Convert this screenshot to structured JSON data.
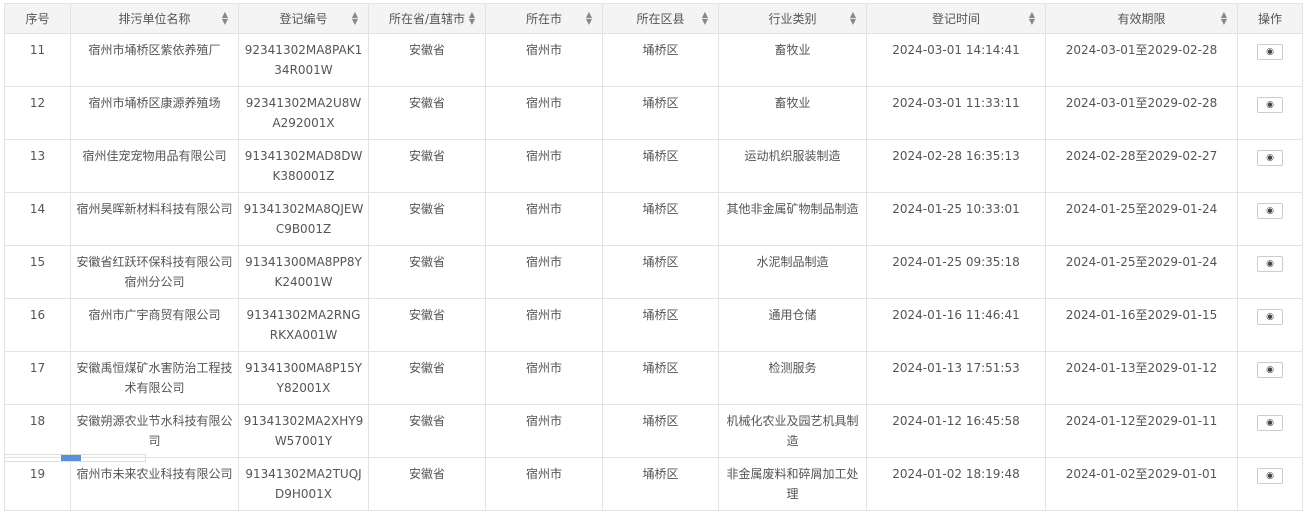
{
  "columns": [
    {
      "label": "序号",
      "sortable": false
    },
    {
      "label": "排污单位名称",
      "sortable": true
    },
    {
      "label": "登记编号",
      "sortable": true
    },
    {
      "label": "所在省/直辖市",
      "sortable": true
    },
    {
      "label": "所在市",
      "sortable": true
    },
    {
      "label": "所在区县",
      "sortable": true
    },
    {
      "label": "行业类别",
      "sortable": true
    },
    {
      "label": "登记时间",
      "sortable": true
    },
    {
      "label": "有效期限",
      "sortable": true
    },
    {
      "label": "操作",
      "sortable": false
    }
  ],
  "sort_icon": "sort-arrows-icon",
  "view_icon": "eye-icon",
  "rows": [
    [
      "11",
      "宿州市埇桥区紫依养殖厂",
      "92341302MA8PAK134R001W",
      "安徽省",
      "宿州市",
      "埇桥区",
      "畜牧业",
      "2024-03-01 14:14:41",
      "2024-03-01至2029-02-28"
    ],
    [
      "12",
      "宿州市埇桥区康源养殖场",
      "92341302MA2U8WA292001X",
      "安徽省",
      "宿州市",
      "埇桥区",
      "畜牧业",
      "2024-03-01 11:33:11",
      "2024-03-01至2029-02-28"
    ],
    [
      "13",
      "宿州佳宠宠物用品有限公司",
      "91341302MAD8DWK380001Z",
      "安徽省",
      "宿州市",
      "埇桥区",
      "运动机织服装制造",
      "2024-02-28 16:35:13",
      "2024-02-28至2029-02-27"
    ],
    [
      "14",
      "宿州昊晖新材料科技有限公司",
      "91341302MA8QJEWC9B001Z",
      "安徽省",
      "宿州市",
      "埇桥区",
      "其他非金属矿物制品制造",
      "2024-01-25 10:33:01",
      "2024-01-25至2029-01-24"
    ],
    [
      "15",
      "安徽省红跃环保科技有限公司宿州分公司",
      "91341300MA8PP8YK24001W",
      "安徽省",
      "宿州市",
      "埇桥区",
      "水泥制品制造",
      "2024-01-25 09:35:18",
      "2024-01-25至2029-01-24"
    ],
    [
      "16",
      "宿州市广宇商贸有限公司",
      "91341302MA2RNGRKXA001W",
      "安徽省",
      "宿州市",
      "埇桥区",
      "通用仓储",
      "2024-01-16 11:46:41",
      "2024-01-16至2029-01-15"
    ],
    [
      "17",
      "安徽禹恒煤矿水害防治工程技术有限公司",
      "91341300MA8P15YY82001X",
      "安徽省",
      "宿州市",
      "埇桥区",
      "检测服务",
      "2024-01-13 17:51:53",
      "2024-01-13至2029-01-12"
    ],
    [
      "18",
      "安徽朔源农业节水科技有限公司",
      "91341302MA2XHY9W57001Y",
      "安徽省",
      "宿州市",
      "埇桥区",
      "机械化农业及园艺机具制造",
      "2024-01-12 16:45:58",
      "2024-01-12至2029-01-11"
    ],
    [
      "19",
      "宿州市未来农业科技有限公司",
      "91341302MA2TUQJD9H001X",
      "安徽省",
      "宿州市",
      "埇桥区",
      "非金属废料和碎屑加工处理",
      "2024-01-02 18:19:48",
      "2024-01-02至2029-01-01"
    ]
  ]
}
